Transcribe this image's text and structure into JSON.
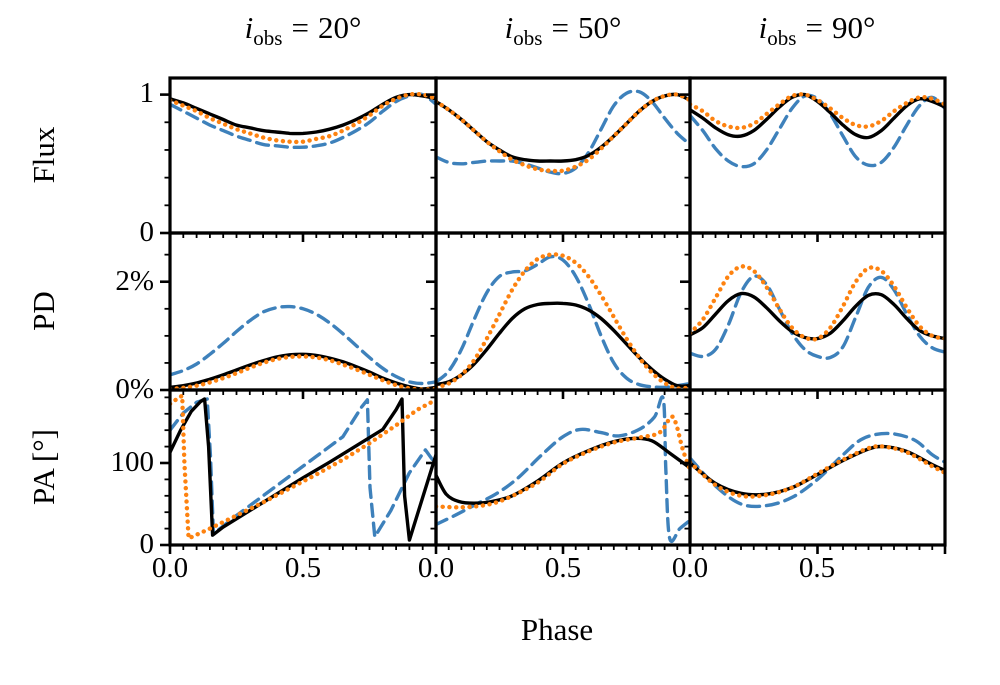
{
  "chart_data": {
    "type": "line",
    "title": "",
    "xlabel": "Phase",
    "xlim": [
      0,
      1
    ],
    "x_major_ticks": [
      0.0,
      0.5
    ],
    "x_minor_step": 0.05,
    "x_tick_labels": [
      "0.0",
      "0.5"
    ],
    "x_sampling_note": "series without explicit x are sampled uniformly over phase 0 to 1",
    "grid": "off",
    "legend": "none",
    "columns": [
      {
        "i_var": "i",
        "sub_text": "obs",
        "eq": "=",
        "value": "20°"
      },
      {
        "i_var": "i",
        "sub_text": "obs",
        "eq": "=",
        "value": "50°"
      },
      {
        "i_var": "i",
        "sub_text": "obs",
        "eq": "=",
        "value": "90°"
      }
    ],
    "rows": [
      {
        "label": "Flux",
        "ylim": [
          0,
          1.12
        ],
        "yticks_major": [
          {
            "v": 1,
            "label": "1"
          },
          {
            "v": 0,
            "label": "0"
          }
        ],
        "yticks_minor": [
          0.2,
          0.4,
          0.6,
          0.8
        ]
      },
      {
        "label": "PD",
        "ylim": [
          0,
          2.9
        ],
        "yticks_major": [
          {
            "v": 2,
            "label": "2%"
          },
          {
            "v": 0,
            "label": "0%"
          }
        ],
        "yticks_minor": [
          0.5,
          1.0,
          1.5,
          2.5
        ]
      },
      {
        "label": "PA [°]",
        "ylim": [
          0,
          189
        ],
        "yticks_major": [
          {
            "v": 100,
            "label": "100"
          },
          {
            "v": 0,
            "label": "0"
          }
        ],
        "yticks_minor": [
          20,
          40,
          60,
          80,
          120,
          140,
          160,
          180
        ]
      }
    ],
    "series_styles": {
      "dashed": {
        "name": "blue-dashed-model",
        "color": "#3e81bb",
        "width": 3.4,
        "dash": "12 7"
      },
      "solid": {
        "name": "black-solid-model",
        "color": "#000000",
        "width": 3.4,
        "dash": null
      },
      "dotted": {
        "name": "orange-dotted-model",
        "color": "#fd8210",
        "width": 4.4,
        "dash": "0.1 6.6",
        "cap": "round"
      }
    },
    "panels": [
      [
        {
          "series": [
            {
              "style": "dashed",
              "y": [
                0.93,
                0.88,
                0.83,
                0.78,
                0.74,
                0.7,
                0.67,
                0.64,
                0.63,
                0.62,
                0.62,
                0.63,
                0.65,
                0.69,
                0.74,
                0.8,
                0.88,
                0.95,
                0.99,
                1.0,
                0.93
              ]
            },
            {
              "style": "solid",
              "y": [
                0.97,
                0.94,
                0.9,
                0.86,
                0.82,
                0.78,
                0.76,
                0.74,
                0.73,
                0.72,
                0.72,
                0.73,
                0.75,
                0.78,
                0.82,
                0.87,
                0.93,
                0.98,
                1.0,
                0.99,
                0.97
              ]
            },
            {
              "style": "dotted",
              "y": [
                0.96,
                0.92,
                0.88,
                0.83,
                0.79,
                0.75,
                0.72,
                0.69,
                0.67,
                0.66,
                0.66,
                0.68,
                0.7,
                0.74,
                0.79,
                0.85,
                0.92,
                0.97,
                1.0,
                1.0,
                0.97
              ]
            }
          ]
        },
        {
          "series": [
            {
              "style": "dashed",
              "y": [
                0.55,
                0.51,
                0.5,
                0.51,
                0.52,
                0.52,
                0.52,
                0.5,
                0.47,
                0.44,
                0.43,
                0.47,
                0.58,
                0.75,
                0.92,
                1.01,
                1.02,
                0.95,
                0.83,
                0.72,
                0.64
              ]
            },
            {
              "style": "solid",
              "y": [
                0.95,
                0.89,
                0.82,
                0.74,
                0.66,
                0.6,
                0.55,
                0.53,
                0.52,
                0.52,
                0.52,
                0.53,
                0.56,
                0.62,
                0.7,
                0.79,
                0.88,
                0.95,
                0.99,
                1.0,
                0.96
              ]
            },
            {
              "style": "dotted",
              "y": [
                0.95,
                0.89,
                0.82,
                0.74,
                0.66,
                0.59,
                0.53,
                0.49,
                0.46,
                0.45,
                0.45,
                0.48,
                0.53,
                0.61,
                0.7,
                0.79,
                0.88,
                0.95,
                0.99,
                1.0,
                0.96
              ]
            }
          ]
        },
        {
          "series": [
            {
              "style": "dashed",
              "y": [
                0.85,
                0.74,
                0.61,
                0.52,
                0.48,
                0.5,
                0.6,
                0.75,
                0.9,
                0.99,
                0.97,
                0.86,
                0.7,
                0.55,
                0.49,
                0.51,
                0.62,
                0.78,
                0.92,
                0.98,
                0.9
              ]
            },
            {
              "style": "solid",
              "y": [
                0.89,
                0.83,
                0.76,
                0.71,
                0.7,
                0.74,
                0.82,
                0.91,
                0.98,
                1.0,
                0.95,
                0.87,
                0.78,
                0.71,
                0.69,
                0.74,
                0.83,
                0.92,
                0.97,
                0.95,
                0.91
              ]
            },
            {
              "style": "dotted",
              "y": [
                0.93,
                0.88,
                0.81,
                0.77,
                0.76,
                0.79,
                0.86,
                0.93,
                0.99,
                1.0,
                0.96,
                0.9,
                0.83,
                0.78,
                0.77,
                0.81,
                0.88,
                0.94,
                0.98,
                0.97,
                0.93
              ]
            }
          ]
        }
      ],
      [
        {
          "series": [
            {
              "style": "dashed",
              "y": [
                0.28,
                0.36,
                0.48,
                0.66,
                0.86,
                1.08,
                1.28,
                1.44,
                1.52,
                1.54,
                1.5,
                1.4,
                1.24,
                1.04,
                0.82,
                0.6,
                0.4,
                0.25,
                0.15,
                0.12,
                0.15
              ]
            },
            {
              "style": "solid",
              "y": [
                0.05,
                0.08,
                0.13,
                0.2,
                0.28,
                0.37,
                0.46,
                0.54,
                0.61,
                0.65,
                0.66,
                0.64,
                0.59,
                0.52,
                0.43,
                0.33,
                0.22,
                0.13,
                0.06,
                0.02,
                0.05
              ]
            },
            {
              "style": "dotted",
              "y": [
                0.02,
                0.04,
                0.08,
                0.14,
                0.22,
                0.31,
                0.41,
                0.5,
                0.57,
                0.61,
                0.62,
                0.6,
                0.55,
                0.47,
                0.38,
                0.28,
                0.18,
                0.09,
                0.03,
                0.01,
                0.02
              ]
            }
          ]
        },
        {
          "series": [
            {
              "style": "dashed",
              "y": [
                0.15,
                0.35,
                0.75,
                1.3,
                1.8,
                2.1,
                2.18,
                2.2,
                2.32,
                2.46,
                2.4,
                2.1,
                1.6,
                1.0,
                0.5,
                0.22,
                0.1,
                0.06,
                0.05,
                0.08,
                0.12
              ]
            },
            {
              "style": "solid",
              "y": [
                0.1,
                0.15,
                0.28,
                0.48,
                0.75,
                1.05,
                1.32,
                1.5,
                1.58,
                1.6,
                1.6,
                1.57,
                1.48,
                1.32,
                1.1,
                0.85,
                0.6,
                0.38,
                0.2,
                0.08,
                0.08
              ]
            },
            {
              "style": "dotted",
              "y": [
                0.05,
                0.12,
                0.28,
                0.55,
                0.95,
                1.4,
                1.85,
                2.2,
                2.42,
                2.5,
                2.48,
                2.35,
                2.1,
                1.75,
                1.35,
                0.95,
                0.6,
                0.32,
                0.13,
                0.03,
                0.05
              ]
            }
          ]
        },
        {
          "series": [
            {
              "style": "dashed",
              "y": [
                0.68,
                0.62,
                0.75,
                1.2,
                1.8,
                2.1,
                1.95,
                1.5,
                1.05,
                0.75,
                0.62,
                0.6,
                0.8,
                1.35,
                1.9,
                2.08,
                1.85,
                1.4,
                1.0,
                0.78,
                0.7
              ]
            },
            {
              "style": "solid",
              "y": [
                1.02,
                1.15,
                1.4,
                1.65,
                1.78,
                1.72,
                1.52,
                1.28,
                1.08,
                0.97,
                0.95,
                1.05,
                1.28,
                1.55,
                1.75,
                1.76,
                1.58,
                1.32,
                1.1,
                1.0,
                0.95
              ]
            },
            {
              "style": "dotted",
              "y": [
                1.05,
                1.3,
                1.7,
                2.1,
                2.28,
                2.2,
                1.9,
                1.5,
                1.15,
                0.97,
                0.95,
                1.15,
                1.55,
                2.0,
                2.25,
                2.2,
                1.92,
                1.52,
                1.18,
                1.0,
                0.95
              ]
            }
          ]
        }
      ],
      [
        {
          "series": [
            {
              "style": "dashed",
              "smooth": false,
              "x": [
                0,
                0.05,
                0.1,
                0.14,
                0.152,
                0.163,
                0.18,
                0.25,
                0.35,
                0.45,
                0.55,
                0.65,
                0.72,
                0.742,
                0.752,
                0.77,
                0.83,
                0.9,
                0.96,
                1.0
              ],
              "y": [
                140,
                161,
                174,
                178,
                110,
                15,
                18,
                36,
                60,
                84,
                108,
                132,
                168,
                177,
                70,
                10,
                42,
                88,
                116,
                98
              ]
            },
            {
              "style": "solid",
              "smooth": false,
              "x": [
                0,
                0.04,
                0.08,
                0.115,
                0.13,
                0.145,
                0.16,
                0.2,
                0.3,
                0.4,
                0.5,
                0.6,
                0.7,
                0.8,
                0.85,
                0.872,
                0.882,
                0.9,
                0.95,
                1.0
              ],
              "y": [
                113,
                140,
                163,
                175,
                178,
                120,
                12,
                22,
                42,
                62,
                82,
                101,
                121,
                141,
                165,
                178,
                60,
                6,
                58,
                110
              ]
            },
            {
              "style": "dotted",
              "smooth": false,
              "x": [
                0,
                0.03,
                0.046,
                0.054,
                0.07,
                0.15,
                0.25,
                0.35,
                0.45,
                0.55,
                0.65,
                0.75,
                0.85,
                0.93,
                1.0
              ],
              "y": [
                172,
                179,
                182,
                100,
                8,
                20,
                36,
                52,
                69,
                86,
                104,
                124,
                146,
                165,
                177
              ]
            }
          ]
        },
        {
          "series": [
            {
              "style": "dashed",
              "x": [
                0,
                0.08,
                0.16,
                0.24,
                0.32,
                0.42,
                0.5,
                0.57,
                0.65,
                0.72,
                0.8,
                0.86,
                0.895,
                0.905,
                0.92,
                0.96,
                1.0
              ],
              "y": [
                25,
                37,
                50,
                63,
                81,
                111,
                132,
                141,
                137,
                133,
                141,
                156,
                178,
                90,
                8,
                20,
                30
              ]
            },
            {
              "style": "solid",
              "x": [
                0,
                0.04,
                0.09,
                0.15,
                0.22,
                0.3,
                0.4,
                0.5,
                0.6,
                0.7,
                0.78,
                0.85,
                0.92,
                1.0
              ],
              "y": [
                85,
                62,
                53,
                51,
                53,
                60,
                78,
                100,
                115,
                126,
                130,
                127,
                112,
                94
              ]
            },
            {
              "style": "dotted",
              "x": [
                0,
                0.1,
                0.2,
                0.28,
                0.4,
                0.5,
                0.6,
                0.7,
                0.8,
                0.88,
                0.925,
                0.945,
                0.97,
                1.0
              ],
              "y": [
                47,
                46,
                49,
                57,
                76,
                99,
                114,
                125,
                131,
                137,
                156,
                148,
                118,
                92
              ]
            }
          ]
        },
        {
          "series": [
            {
              "style": "dashed",
              "x": [
                0,
                0.1,
                0.2,
                0.3,
                0.4,
                0.5,
                0.6,
                0.68,
                0.78,
                0.88,
                0.95,
                1.0
              ],
              "y": [
                106,
                72,
                50,
                48,
                58,
                80,
                110,
                130,
                136,
                128,
                110,
                101
              ]
            },
            {
              "style": "solid",
              "x": [
                0,
                0.1,
                0.2,
                0.3,
                0.4,
                0.5,
                0.6,
                0.7,
                0.76,
                0.85,
                0.95,
                1.0
              ],
              "y": [
                100,
                75,
                63,
                62,
                70,
                86,
                103,
                117,
                120,
                114,
                98,
                91
              ]
            },
            {
              "style": "dotted",
              "x": [
                0,
                0.1,
                0.2,
                0.3,
                0.4,
                0.5,
                0.6,
                0.7,
                0.76,
                0.85,
                0.95,
                1.0
              ],
              "y": [
                101,
                73,
                60,
                61,
                70,
                87,
                104,
                118,
                120,
                113,
                96,
                88
              ]
            }
          ]
        }
      ]
    ]
  }
}
